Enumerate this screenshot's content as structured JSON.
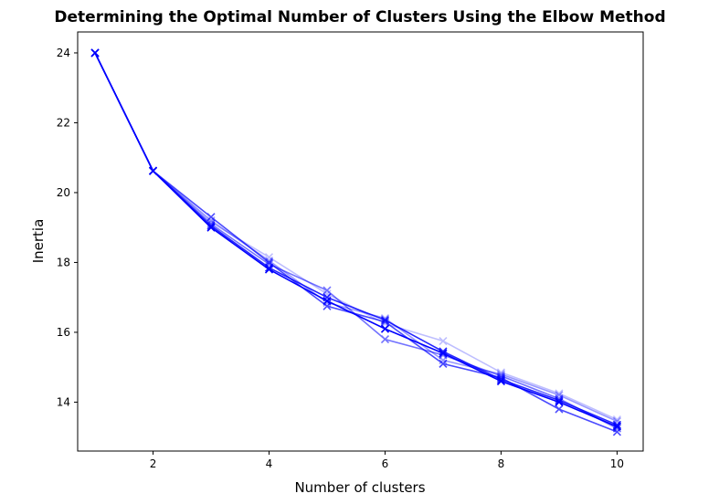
{
  "chart_data": {
    "type": "line",
    "title": "Determining the Optimal Number of Clusters Using the Elbow Method",
    "xlabel": "Number of clusters",
    "ylabel": "Inertia",
    "xlim": [
      0.7,
      10.45
    ],
    "ylim": [
      12.6,
      24.6
    ],
    "xticks": [
      2,
      4,
      6,
      8,
      10
    ],
    "yticks": [
      14,
      16,
      18,
      20,
      22,
      24
    ],
    "grid": false,
    "legend": "none",
    "marker": "x",
    "color": "#0000ff",
    "x": [
      1,
      2,
      3,
      4,
      5,
      6,
      7,
      8,
      9,
      10
    ],
    "series": [
      {
        "values": [
          24.0,
          20.62,
          19.0,
          17.8,
          16.9,
          16.1,
          15.4,
          14.6,
          14.0,
          13.3
        ],
        "opacity": 1.0
      },
      {
        "values": [
          24.0,
          20.62,
          19.05,
          17.85,
          17.0,
          16.35,
          15.45,
          14.65,
          14.05,
          13.35
        ],
        "opacity": 0.85
      },
      {
        "values": [
          24.0,
          20.62,
          19.3,
          18.0,
          16.75,
          16.3,
          15.1,
          14.7,
          13.8,
          13.15
        ],
        "opacity": 0.7
      },
      {
        "values": [
          24.0,
          20.62,
          19.1,
          17.95,
          17.2,
          15.8,
          15.35,
          14.75,
          14.1,
          13.25
        ],
        "opacity": 0.55
      },
      {
        "values": [
          24.0,
          20.62,
          19.2,
          18.05,
          16.85,
          16.4,
          15.2,
          14.8,
          14.2,
          13.45
        ],
        "opacity": 0.4
      },
      {
        "values": [
          24.0,
          20.62,
          19.15,
          18.15,
          17.1,
          16.25,
          15.75,
          14.85,
          14.25,
          13.5
        ],
        "opacity": 0.25
      }
    ]
  }
}
